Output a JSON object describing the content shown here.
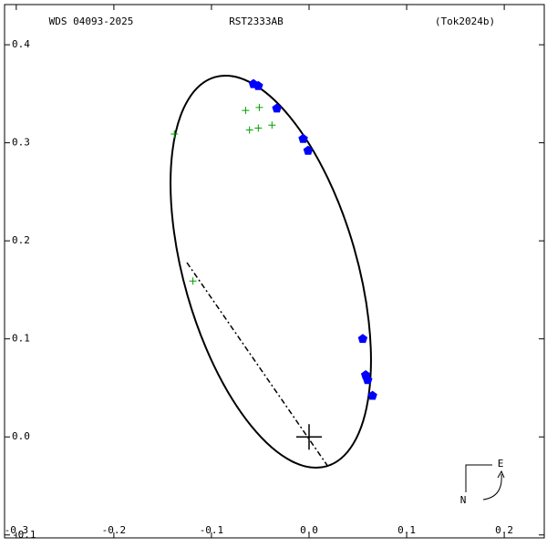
{
  "chart_data": {
    "type": "scatter",
    "title": "WDS 04093-2025",
    "subtitle": "RST2333AB",
    "annotation": "(Tok2024b)",
    "compass": {
      "north": "N",
      "east": "E"
    },
    "xlim": [
      -0.312,
      0.241
    ],
    "ylim": [
      -0.103,
      0.441
    ],
    "xticks": [
      -0.3,
      -0.2,
      -0.1,
      {
        "value": 0,
        "label": "0.0"
      },
      0.1,
      0.2
    ],
    "yticks": [
      -0.1,
      {
        "value": 0,
        "label": "0.0"
      },
      0.1,
      0.2,
      0.3,
      0.4
    ],
    "series": [
      {
        "color": "#0000ff",
        "marker": "pentagon",
        "x": [
          -0.057,
          -0.052,
          -0.033,
          -0.006,
          -0.001,
          0.055,
          0.058,
          0.06,
          0.065
        ],
        "values": [
          0.36,
          0.358,
          0.335,
          0.304,
          0.292,
          0.1,
          0.063,
          0.058,
          0.042
        ]
      },
      {
        "color": "#00a000",
        "marker": "plus",
        "x": [
          -0.138,
          -0.119,
          -0.065,
          -0.061,
          -0.052,
          -0.051,
          -0.038
        ],
        "values": [
          0.309,
          0.159,
          0.333,
          0.313,
          0.315,
          0.336,
          0.318
        ]
      }
    ]
  }
}
